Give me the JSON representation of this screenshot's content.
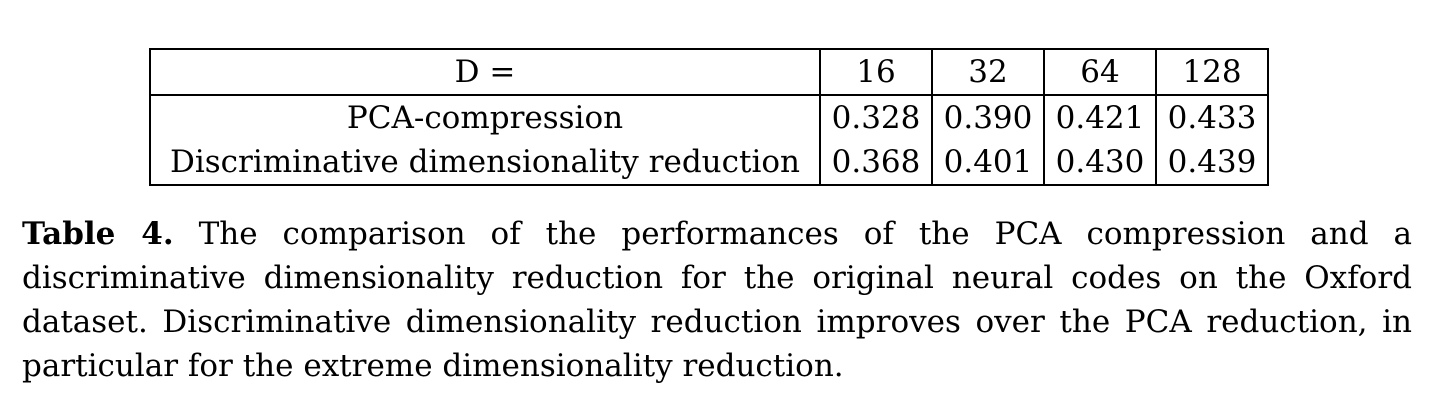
{
  "table": {
    "header": {
      "label": "D =",
      "columns": [
        "16",
        "32",
        "64",
        "128"
      ]
    },
    "rows": [
      {
        "label": "PCA-compression",
        "values": [
          "0.328",
          "0.390",
          "0.421",
          "0.433"
        ]
      },
      {
        "label": "Discriminative dimensionality reduction",
        "values": [
          "0.368",
          "0.401",
          "0.430",
          "0.439"
        ]
      }
    ]
  },
  "caption": {
    "label": "Table 4.",
    "text": "The comparison of the performances of the PCA compression and a discriminative dimensionality reduction for the original neural codes on the Oxford dataset. Discriminative dimensionality reduction improves over the PCA reduction, in particular for the extreme dimensionality reduction."
  }
}
